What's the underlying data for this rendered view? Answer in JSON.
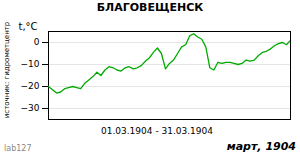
{
  "chart_data": {
    "type": "line",
    "title": "БЛАГОВЕЩЕНСК",
    "ylabel": "t,°C",
    "xlabel": "01.03.1904  -  31.03.1904",
    "annotations": [
      "источник: гидрометцентр",
      "lab127",
      "март, 1904"
    ],
    "x": [
      0,
      0.5,
      1,
      1.5,
      2,
      2.5,
      3,
      3.5,
      4,
      4.5,
      5,
      5.5,
      6,
      6.5,
      7,
      7.5,
      8,
      8.5,
      9,
      9.5,
      10,
      10.5,
      11,
      11.5,
      12,
      12.5,
      13,
      13.5,
      14,
      14.5,
      15,
      15.5,
      16,
      16.5,
      17,
      17.5,
      18,
      18.5,
      19,
      19.5,
      20,
      20.5,
      21,
      21.5,
      22,
      22.5,
      23,
      23.5,
      24,
      24.5,
      25,
      25.5,
      26,
      26.5,
      27,
      27.5,
      28,
      28.5,
      29,
      29.5,
      30
    ],
    "values": [
      -20.0,
      -21.5,
      -23.0,
      -22.5,
      -21.0,
      -20.5,
      -20.0,
      -20.5,
      -21.0,
      -18.5,
      -17.0,
      -15.5,
      -13.5,
      -15.0,
      -12.5,
      -11.0,
      -11.5,
      -12.5,
      -13.0,
      -11.5,
      -11.0,
      -12.0,
      -11.5,
      -10.5,
      -8.5,
      -7.0,
      -4.5,
      -2.5,
      -5.0,
      -12.0,
      -9.5,
      -8.0,
      -5.0,
      -2.0,
      -1.0,
      3.0,
      4.0,
      2.5,
      1.5,
      -2.0,
      -11.5,
      -12.5,
      -9.0,
      -9.5,
      -9.0,
      -9.0,
      -9.5,
      -10.0,
      -9.5,
      -8.0,
      -8.5,
      -8.0,
      -6.0,
      -4.5,
      -4.0,
      -3.0,
      -1.5,
      -0.5,
      0.0,
      -1.0,
      1.0
    ],
    "color": "#00aa00",
    "xlim": [
      0,
      30
    ],
    "xticks": [],
    "ylim": [
      -35,
      5
    ],
    "yticks": [
      0,
      -10,
      -20,
      -30
    ],
    "grid": true,
    "tick_labels": "y"
  }
}
